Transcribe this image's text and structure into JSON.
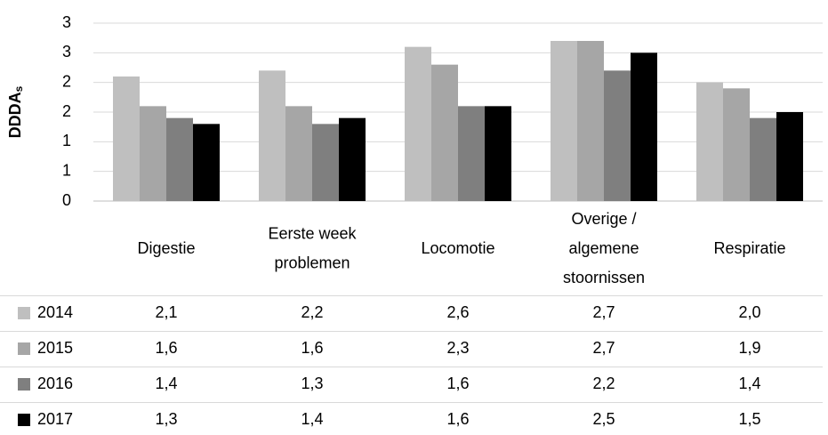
{
  "chart_data": {
    "type": "bar",
    "y_label": "DDDA",
    "y_label_subscript": "s",
    "categories": [
      [
        "Digestie"
      ],
      [
        "Eerste week",
        "problemen"
      ],
      [
        "Locomotie"
      ],
      [
        "Overige /",
        "algemene",
        "stoornissen"
      ],
      [
        "Respiratie"
      ]
    ],
    "series": [
      {
        "name": "2014",
        "color": "#bfbfbf",
        "values": [
          2.1,
          2.2,
          2.6,
          2.7,
          2.0
        ],
        "value_labels": [
          "2,1",
          "2,2",
          "2,6",
          "2,7",
          "2,0"
        ]
      },
      {
        "name": "2015",
        "color": "#a6a6a6",
        "values": [
          1.6,
          1.6,
          2.3,
          2.7,
          1.9
        ],
        "value_labels": [
          "1,6",
          "1,6",
          "2,3",
          "2,7",
          "1,9"
        ]
      },
      {
        "name": "2016",
        "color": "#7f7f7f",
        "values": [
          1.4,
          1.3,
          1.6,
          2.2,
          1.4
        ],
        "value_labels": [
          "1,4",
          "1,3",
          "1,6",
          "2,2",
          "1,4"
        ]
      },
      {
        "name": "2017",
        "color": "#000000",
        "values": [
          1.3,
          1.4,
          1.6,
          2.5,
          1.5
        ],
        "value_labels": [
          "1,3",
          "1,4",
          "1,6",
          "2,5",
          "1,5"
        ]
      }
    ],
    "ylim": [
      0,
      3
    ],
    "yticks": [
      0,
      {
        "value": 0.5,
        "label": "1"
      },
      1,
      {
        "value": 1.5,
        "label": "2"
      },
      2,
      {
        "value": 2.5,
        "label": "3"
      },
      3
    ],
    "grid": true,
    "data_table": true
  }
}
